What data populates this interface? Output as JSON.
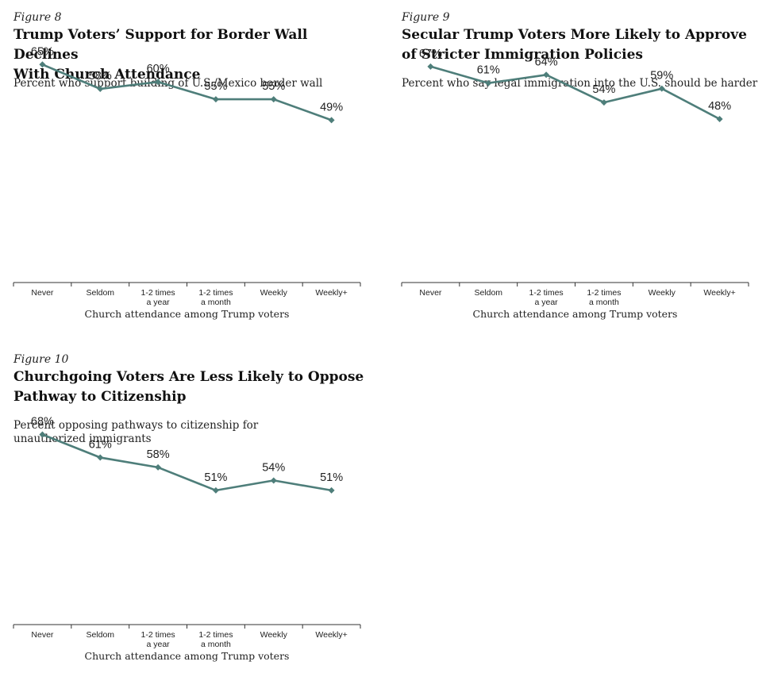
{
  "colors": {
    "line": "#4e7e7a",
    "axis": "#333333"
  },
  "charts": [
    {
      "figure_label": "Figure 8",
      "title_lines": [
        "Trump Voters’ Support for Border Wall Declines",
        "With Church Attendance"
      ],
      "subtitle_lines": [
        "Percent who support building of U.S./Mexico border wall"
      ],
      "xlabel": "Church attendance among Trump voters",
      "tick_labels": [
        [
          "Never"
        ],
        [
          "Seldom"
        ],
        [
          "1-2 times",
          "a year"
        ],
        [
          "1-2 times",
          "a month"
        ],
        [
          "Weekly"
        ],
        [
          "Weekly+"
        ]
      ],
      "value_labels": [
        "65%",
        "58%",
        "60%",
        "55%",
        "55%",
        "49%"
      ]
    },
    {
      "figure_label": "Figure 9",
      "title_lines": [
        "Secular Trump Voters More Likely to Approve",
        "of Stricter Immigration Policies"
      ],
      "subtitle_lines": [
        "Percent who say legal immigration into the U.S. should be harder"
      ],
      "xlabel": "Church attendance among Trump voters",
      "tick_labels": [
        [
          "Never"
        ],
        [
          "Seldom"
        ],
        [
          "1-2 times",
          "a year"
        ],
        [
          "1-2 times",
          "a month"
        ],
        [
          "Weekly"
        ],
        [
          "Weekly+"
        ]
      ],
      "value_labels": [
        "67%",
        "61%",
        "64%",
        "54%",
        "59%",
        "48%"
      ]
    },
    {
      "figure_label": "Figure 10",
      "title_lines": [
        "Churchgoing Voters Are Less Likely to Oppose",
        "Pathway to Citizenship"
      ],
      "subtitle_lines": [
        "Percent opposing pathways to citizenship for",
        "unauthorized immigrants"
      ],
      "xlabel": "Church attendance among Trump voters",
      "tick_labels": [
        [
          "Never"
        ],
        [
          "Seldom"
        ],
        [
          "1-2 times",
          "a year"
        ],
        [
          "1-2 times",
          "a month"
        ],
        [
          "Weekly"
        ],
        [
          "Weekly+"
        ]
      ],
      "value_labels": [
        "68%",
        "61%",
        "58%",
        "51%",
        "54%",
        "51%"
      ]
    }
  ],
  "chart_data": [
    {
      "type": "line",
      "title": "Trump Voters’ Support for Border Wall Declines With Church Attendance",
      "subtitle": "Percent who support building of U.S./Mexico border wall",
      "xlabel": "Church attendance among Trump voters",
      "ylabel": "",
      "categories": [
        "Never",
        "Seldom",
        "1-2 times a year",
        "1-2 times a month",
        "Weekly",
        "Weekly+"
      ],
      "values": [
        65,
        58,
        60,
        55,
        55,
        49
      ],
      "grid": false
    },
    {
      "type": "line",
      "title": "Secular Trump Voters More Likely to Approve of Stricter Immigration Policies",
      "subtitle": "Percent who say legal immigration into the U.S. should be harder",
      "xlabel": "Church attendance among Trump voters",
      "ylabel": "",
      "categories": [
        "Never",
        "Seldom",
        "1-2 times a year",
        "1-2 times a month",
        "Weekly",
        "Weekly+"
      ],
      "values": [
        67,
        61,
        64,
        54,
        59,
        48
      ],
      "grid": false
    },
    {
      "type": "line",
      "title": "Churchgoing Voters Are Less Likely to Oppose Pathway to Citizenship",
      "subtitle": "Percent opposing pathways to citizenship for unauthorized immigrants",
      "xlabel": "Church attendance among Trump voters",
      "ylabel": "",
      "categories": [
        "Never",
        "Seldom",
        "1-2 times a year",
        "1-2 times a month",
        "Weekly",
        "Weekly+"
      ],
      "values": [
        68,
        61,
        58,
        51,
        54,
        51
      ],
      "grid": false
    }
  ]
}
